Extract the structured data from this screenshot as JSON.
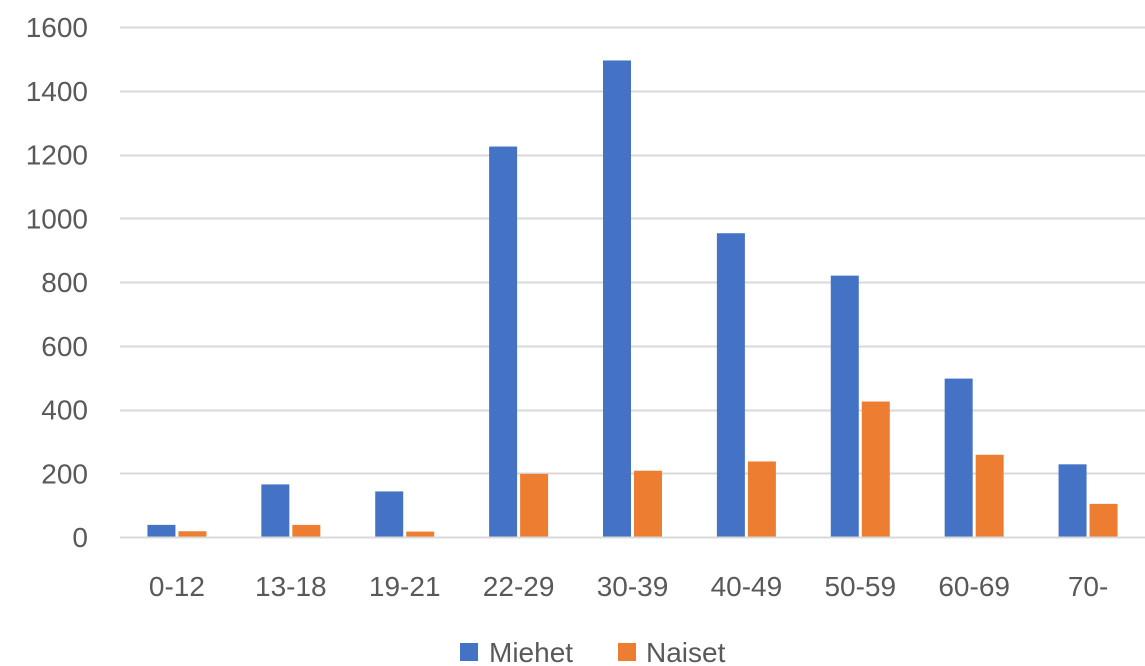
{
  "chart_data": {
    "type": "bar",
    "categories": [
      "0-12",
      "13-18",
      "19-21",
      "22-29",
      "30-39",
      "40-49",
      "50-59",
      "60-69",
      "70-"
    ],
    "series": [
      {
        "name": "Miehet",
        "color": "#4472C4",
        "values": [
          38,
          165,
          143,
          1225,
          1495,
          953,
          820,
          497,
          228
        ]
      },
      {
        "name": "Naiset",
        "color": "#ED7D31",
        "values": [
          18,
          38,
          17,
          198,
          208,
          237,
          425,
          258,
          104
        ]
      }
    ],
    "ylim": [
      0,
      1600
    ],
    "yticks": [
      "0",
      "200",
      "400",
      "600",
      "800",
      "1000",
      "1200",
      "1400",
      "1600"
    ],
    "grid": true,
    "legend_position": "bottom",
    "colors": {
      "gridline": "#D9D9D9",
      "axis_line": "#D9D9D9",
      "text": "#595959"
    }
  }
}
